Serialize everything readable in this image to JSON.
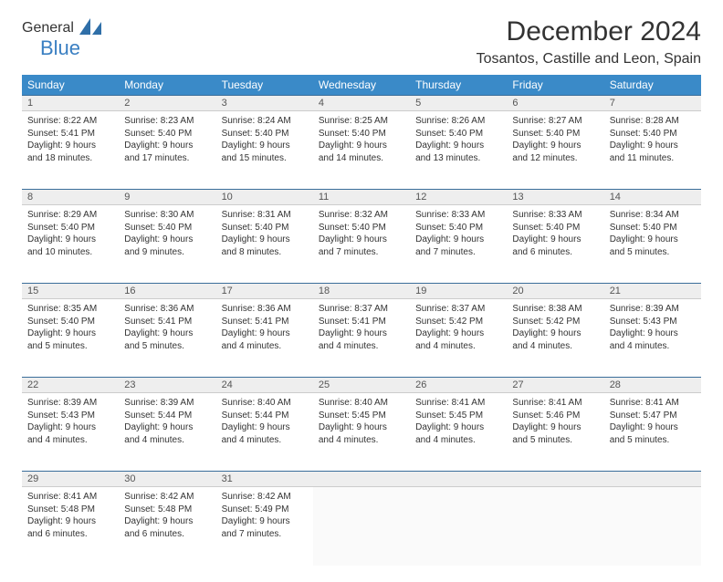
{
  "logo": {
    "word1": "General",
    "word2": "Blue",
    "iconColor": "#2f6fa8"
  },
  "title": "December 2024",
  "location": "Tosantos, Castille and Leon, Spain",
  "headerBg": "#3a8ac8",
  "headerFg": "#ffffff",
  "dayHeaders": [
    "Sunday",
    "Monday",
    "Tuesday",
    "Wednesday",
    "Thursday",
    "Friday",
    "Saturday"
  ],
  "weeks": [
    [
      {
        "n": "1",
        "sr": "8:22 AM",
        "ss": "5:41 PM",
        "dl": "9 hours and 18 minutes."
      },
      {
        "n": "2",
        "sr": "8:23 AM",
        "ss": "5:40 PM",
        "dl": "9 hours and 17 minutes."
      },
      {
        "n": "3",
        "sr": "8:24 AM",
        "ss": "5:40 PM",
        "dl": "9 hours and 15 minutes."
      },
      {
        "n": "4",
        "sr": "8:25 AM",
        "ss": "5:40 PM",
        "dl": "9 hours and 14 minutes."
      },
      {
        "n": "5",
        "sr": "8:26 AM",
        "ss": "5:40 PM",
        "dl": "9 hours and 13 minutes."
      },
      {
        "n": "6",
        "sr": "8:27 AM",
        "ss": "5:40 PM",
        "dl": "9 hours and 12 minutes."
      },
      {
        "n": "7",
        "sr": "8:28 AM",
        "ss": "5:40 PM",
        "dl": "9 hours and 11 minutes."
      }
    ],
    [
      {
        "n": "8",
        "sr": "8:29 AM",
        "ss": "5:40 PM",
        "dl": "9 hours and 10 minutes."
      },
      {
        "n": "9",
        "sr": "8:30 AM",
        "ss": "5:40 PM",
        "dl": "9 hours and 9 minutes."
      },
      {
        "n": "10",
        "sr": "8:31 AM",
        "ss": "5:40 PM",
        "dl": "9 hours and 8 minutes."
      },
      {
        "n": "11",
        "sr": "8:32 AM",
        "ss": "5:40 PM",
        "dl": "9 hours and 7 minutes."
      },
      {
        "n": "12",
        "sr": "8:33 AM",
        "ss": "5:40 PM",
        "dl": "9 hours and 7 minutes."
      },
      {
        "n": "13",
        "sr": "8:33 AM",
        "ss": "5:40 PM",
        "dl": "9 hours and 6 minutes."
      },
      {
        "n": "14",
        "sr": "8:34 AM",
        "ss": "5:40 PM",
        "dl": "9 hours and 5 minutes."
      }
    ],
    [
      {
        "n": "15",
        "sr": "8:35 AM",
        "ss": "5:40 PM",
        "dl": "9 hours and 5 minutes."
      },
      {
        "n": "16",
        "sr": "8:36 AM",
        "ss": "5:41 PM",
        "dl": "9 hours and 5 minutes."
      },
      {
        "n": "17",
        "sr": "8:36 AM",
        "ss": "5:41 PM",
        "dl": "9 hours and 4 minutes."
      },
      {
        "n": "18",
        "sr": "8:37 AM",
        "ss": "5:41 PM",
        "dl": "9 hours and 4 minutes."
      },
      {
        "n": "19",
        "sr": "8:37 AM",
        "ss": "5:42 PM",
        "dl": "9 hours and 4 minutes."
      },
      {
        "n": "20",
        "sr": "8:38 AM",
        "ss": "5:42 PM",
        "dl": "9 hours and 4 minutes."
      },
      {
        "n": "21",
        "sr": "8:39 AM",
        "ss": "5:43 PM",
        "dl": "9 hours and 4 minutes."
      }
    ],
    [
      {
        "n": "22",
        "sr": "8:39 AM",
        "ss": "5:43 PM",
        "dl": "9 hours and 4 minutes."
      },
      {
        "n": "23",
        "sr": "8:39 AM",
        "ss": "5:44 PM",
        "dl": "9 hours and 4 minutes."
      },
      {
        "n": "24",
        "sr": "8:40 AM",
        "ss": "5:44 PM",
        "dl": "9 hours and 4 minutes."
      },
      {
        "n": "25",
        "sr": "8:40 AM",
        "ss": "5:45 PM",
        "dl": "9 hours and 4 minutes."
      },
      {
        "n": "26",
        "sr": "8:41 AM",
        "ss": "5:45 PM",
        "dl": "9 hours and 4 minutes."
      },
      {
        "n": "27",
        "sr": "8:41 AM",
        "ss": "5:46 PM",
        "dl": "9 hours and 5 minutes."
      },
      {
        "n": "28",
        "sr": "8:41 AM",
        "ss": "5:47 PM",
        "dl": "9 hours and 5 minutes."
      }
    ],
    [
      {
        "n": "29",
        "sr": "8:41 AM",
        "ss": "5:48 PM",
        "dl": "9 hours and 6 minutes."
      },
      {
        "n": "30",
        "sr": "8:42 AM",
        "ss": "5:48 PM",
        "dl": "9 hours and 6 minutes."
      },
      {
        "n": "31",
        "sr": "8:42 AM",
        "ss": "5:49 PM",
        "dl": "9 hours and 7 minutes."
      },
      null,
      null,
      null,
      null
    ]
  ],
  "labels": {
    "sunrise": "Sunrise:",
    "sunset": "Sunset:",
    "daylight": "Daylight:"
  }
}
